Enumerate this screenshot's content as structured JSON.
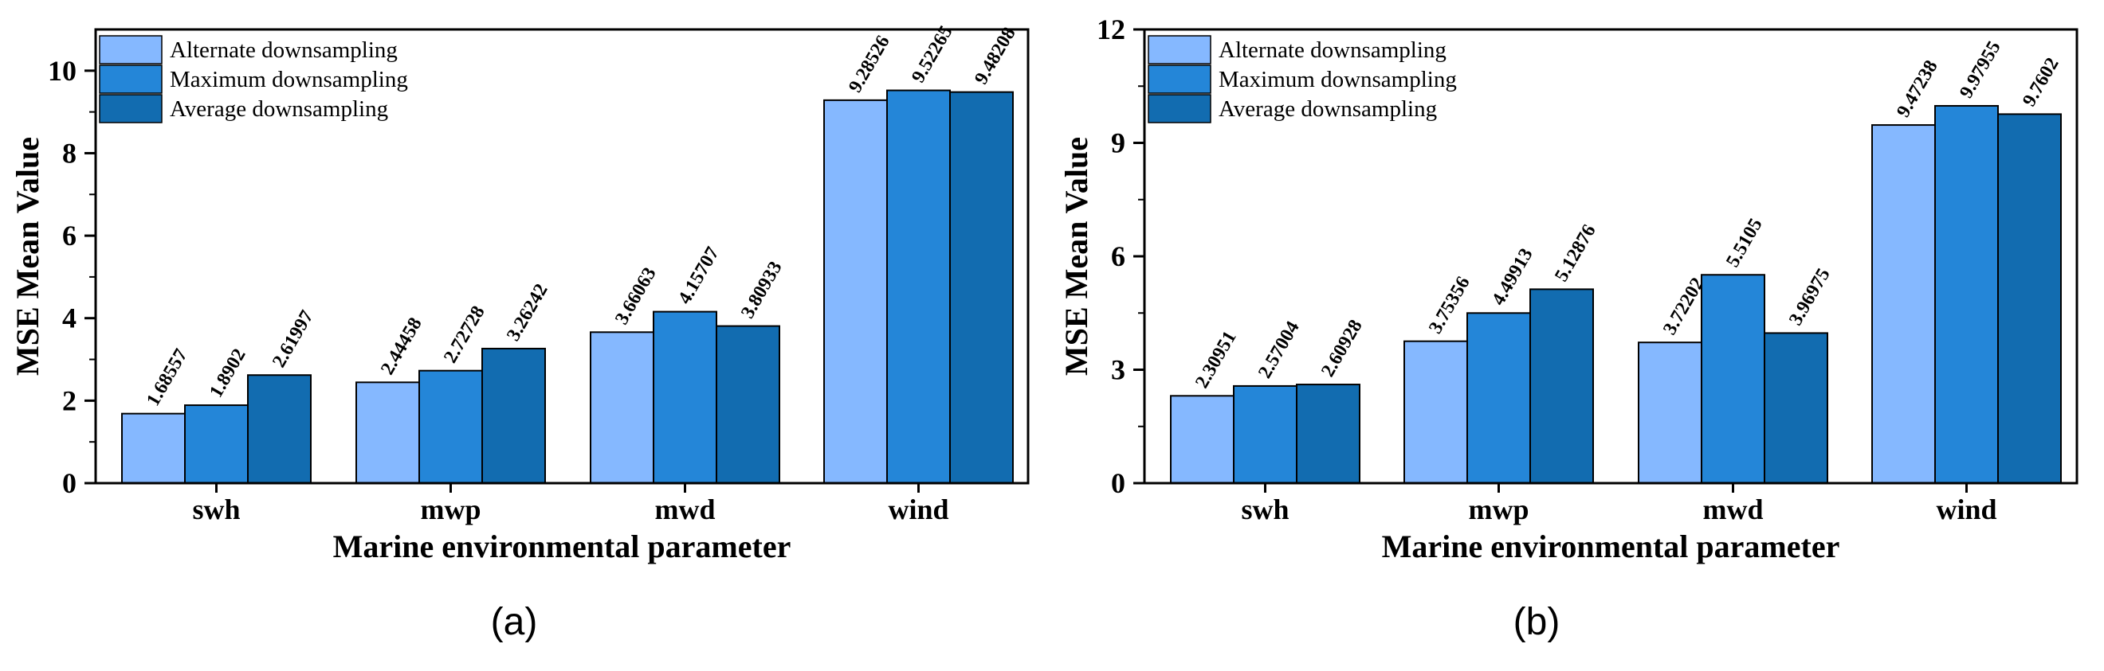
{
  "chart_data": [
    {
      "type": "bar",
      "caption": "(a)",
      "categories": [
        "swh",
        "mwp",
        "mwd",
        "wind"
      ],
      "series": [
        {
          "name": "Alternate downsampling",
          "color": "#85b8ff",
          "values": [
            1.68557,
            2.44458,
            3.66063,
            9.28526
          ],
          "labels": [
            "1.68557",
            "2.44458",
            "3.66063",
            "9.28526"
          ]
        },
        {
          "name": "Maximum downsampling",
          "color": "#2486d8",
          "values": [
            1.8902,
            2.72728,
            4.15707,
            9.52265
          ],
          "labels": [
            "1.8902",
            "2.72728",
            "4.15707",
            "9.52265"
          ]
        },
        {
          "name": "Average downsampling",
          "color": "#126cb0",
          "values": [
            2.61997,
            3.26242,
            3.80933,
            9.48208
          ],
          "labels": [
            "2.61997",
            "3.26242",
            "3.80933",
            "9.48208"
          ]
        }
      ],
      "xlabel": "Marine environmental parameter",
      "ylabel": "MSE Mean Value",
      "ylim": [
        0,
        11
      ],
      "yticks": [
        0,
        2,
        4,
        6,
        8,
        10
      ],
      "ytick_labels": [
        "0",
        "2",
        "4",
        "6",
        "8",
        "10"
      ],
      "legend": "top-left",
      "grid": false
    },
    {
      "type": "bar",
      "caption": "(b)",
      "categories": [
        "swh",
        "mwp",
        "mwd",
        "wind"
      ],
      "series": [
        {
          "name": "Alternate downsampling",
          "color": "#85b8ff",
          "values": [
            2.30951,
            3.75356,
            3.72202,
            9.47238
          ],
          "labels": [
            "2.30951",
            "3.75356",
            "3.72202",
            "9.47238"
          ]
        },
        {
          "name": "Maximum downsampling",
          "color": "#2486d8",
          "values": [
            2.57004,
            4.49913,
            5.5105,
            9.97955
          ],
          "labels": [
            "2.57004",
            "4.49913",
            "5.5105",
            "9.97955"
          ]
        },
        {
          "name": "Average downsampling",
          "color": "#126cb0",
          "values": [
            2.60928,
            5.12876,
            3.96975,
            9.7602
          ],
          "labels": [
            "2.60928",
            "5.12876",
            "3.96975",
            "9.7602"
          ]
        }
      ],
      "xlabel": "Marine environmental parameter",
      "ylabel": "MSE Mean Value",
      "ylim": [
        0,
        12
      ],
      "yticks": [
        0,
        3,
        6,
        9,
        12
      ],
      "ytick_labels": [
        "0",
        "3",
        "6",
        "9",
        "12"
      ],
      "legend": "top-left",
      "grid": false
    }
  ]
}
